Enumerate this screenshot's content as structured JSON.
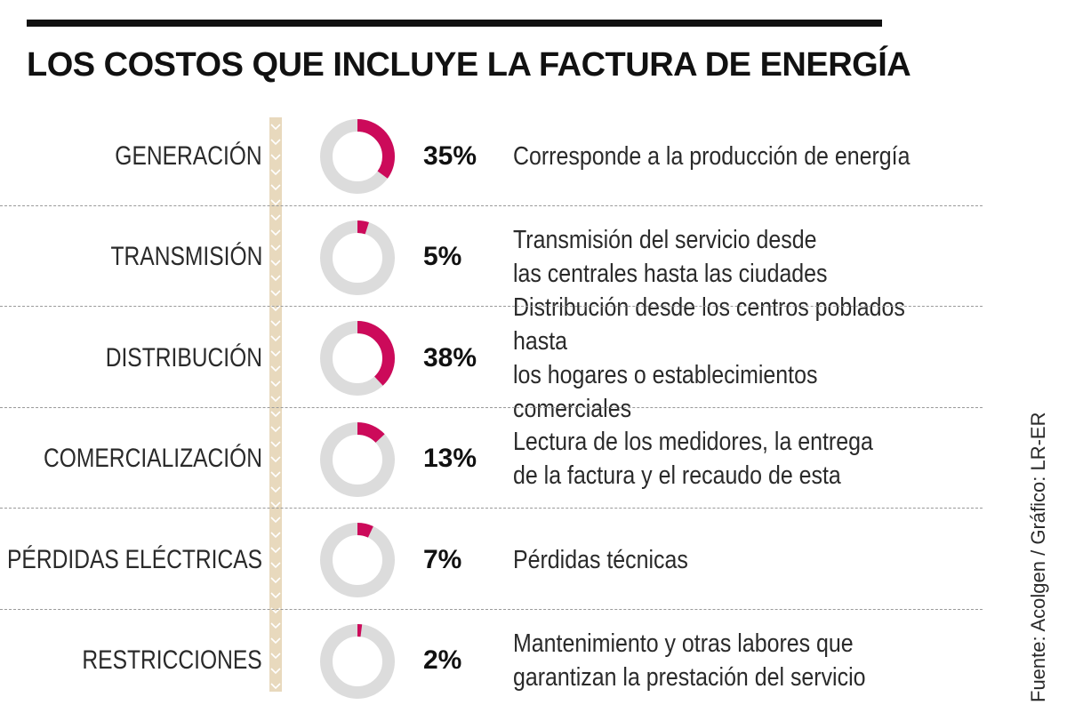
{
  "title": "LOS COSTOS QUE INCLUYE LA FACTURA DE ENERGÍA",
  "source": "Fuente: Acolgen / Gráfico: LR-ER",
  "colors": {
    "accent": "#cc0a5a",
    "track": "#dcdcdc",
    "spine": "#e8d9bd"
  },
  "chart_data": {
    "type": "donut-table",
    "title": "LOS COSTOS QUE INCLUYE LA FACTURA DE ENERGÍA",
    "unit": "%",
    "categories": [
      "GENERACIÓN",
      "TRANSMISIÓN",
      "DISTRIBUCIÓN",
      "COMERCIALIZACIÓN",
      "PÉRDIDAS ELÉCTRICAS",
      "RESTRICCIONES"
    ],
    "values": [
      35,
      5,
      38,
      13,
      7,
      2
    ],
    "rows": [
      {
        "label": "GENERACIÓN",
        "value": 35,
        "pct_label": "35%",
        "desc": [
          "Corresponde a la producción de energía"
        ]
      },
      {
        "label": "TRANSMISIÓN",
        "value": 5,
        "pct_label": "5%",
        "desc": [
          "Transmisión del servicio desde",
          "las centrales hasta las ciudades"
        ]
      },
      {
        "label": "DISTRIBUCIÓN",
        "value": 38,
        "pct_label": "38%",
        "desc": [
          "Distribución desde los centros poblados hasta",
          "los hogares o establecimientos comerciales"
        ]
      },
      {
        "label": "COMERCIALIZACIÓN",
        "value": 13,
        "pct_label": "13%",
        "desc": [
          "Lectura de los medidores, la entrega",
          "de la factura y el recaudo de esta"
        ]
      },
      {
        "label": "PÉRDIDAS ELÉCTRICAS",
        "value": 7,
        "pct_label": "7%",
        "desc": [
          "Pérdidas técnicas"
        ]
      },
      {
        "label": "RESTRICCIONES",
        "value": 2,
        "pct_label": "2%",
        "desc": [
          "Mantenimiento y otras labores que",
          "garantizan la prestación del servicio"
        ]
      }
    ]
  }
}
